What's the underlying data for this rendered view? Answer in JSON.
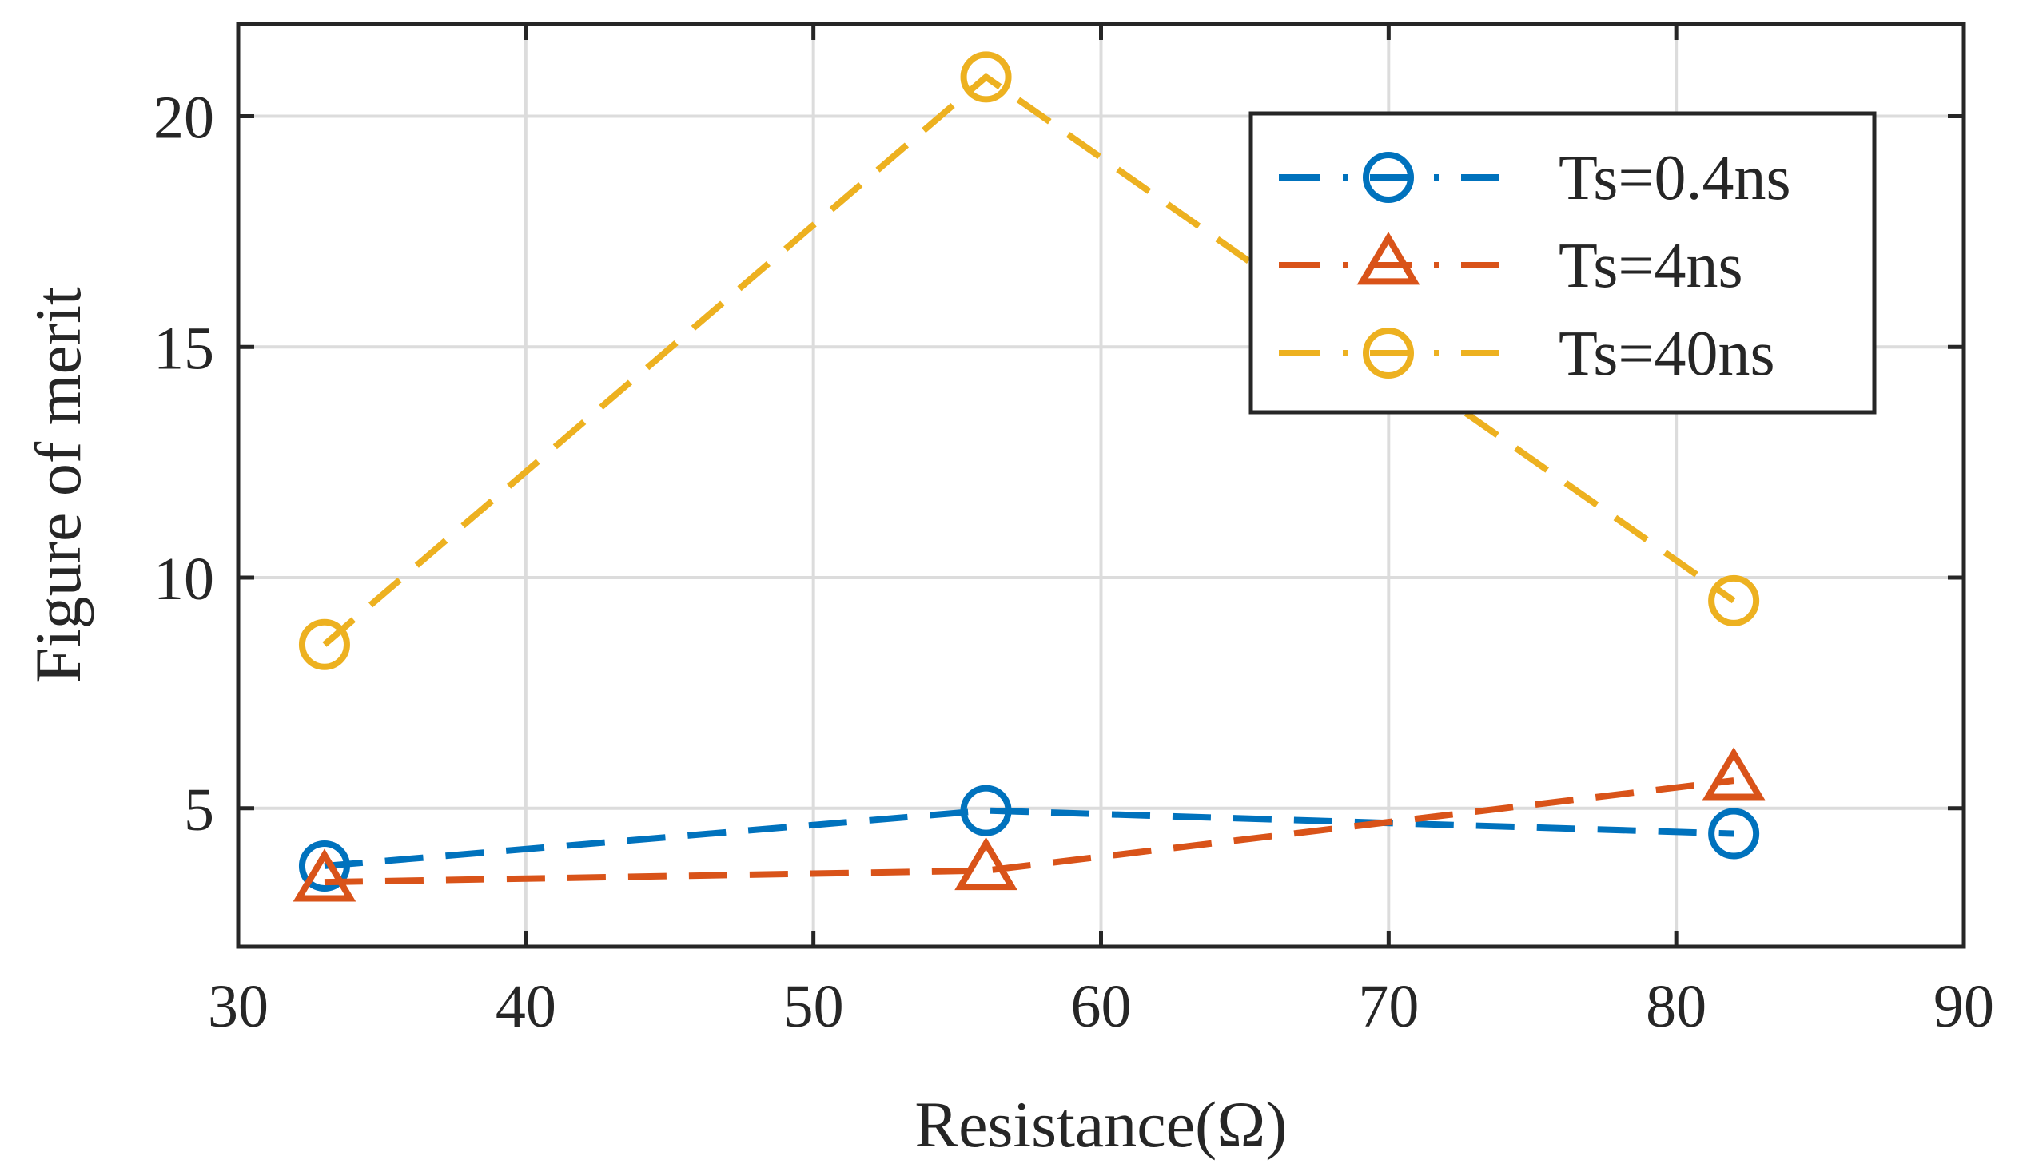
{
  "chart_data": {
    "type": "line",
    "title": "",
    "xlabel": "Resistance(Ω)",
    "ylabel": "Figure of merit",
    "xlim": [
      30,
      90
    ],
    "ylim": [
      2,
      22
    ],
    "xticks": [
      30,
      40,
      50,
      60,
      70,
      80,
      90
    ],
    "yticks": [
      5,
      10,
      15,
      20
    ],
    "x_tick_labels": [
      "30",
      "40",
      "50",
      "60",
      "70",
      "80",
      "90"
    ],
    "y_tick_labels": [
      "5",
      "10",
      "15",
      "20"
    ],
    "grid": true,
    "legend_position": "top-right",
    "x": [
      33,
      56,
      82
    ],
    "series": [
      {
        "name": "Ts=0.4ns",
        "values": [
          3.75,
          4.95,
          4.45
        ],
        "color": "#0072BD",
        "marker": "circle",
        "line_style": "dashed"
      },
      {
        "name": "Ts=4ns",
        "values": [
          3.4,
          3.65,
          5.6
        ],
        "color": "#D95319",
        "marker": "triangle",
        "line_style": "dashed"
      },
      {
        "name": "Ts=40ns",
        "values": [
          8.55,
          20.85,
          9.5
        ],
        "color": "#EDB120",
        "marker": "circle",
        "line_style": "dashed"
      }
    ]
  }
}
